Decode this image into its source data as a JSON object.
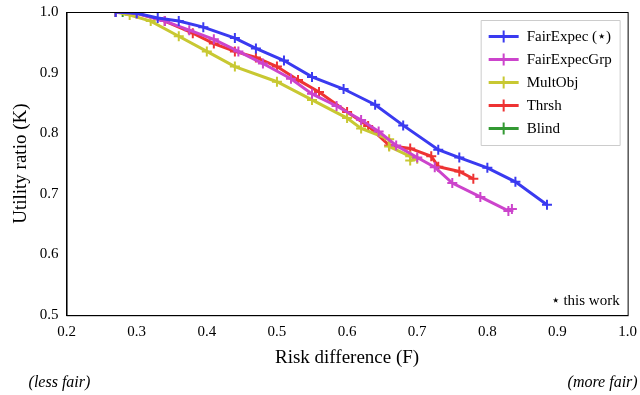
{
  "chart_data": {
    "type": "line",
    "x_label": "Risk difference (F)",
    "y_label": "Utility ratio (K)",
    "annotations": [
      "(less fair)",
      "(more fair)",
      "⋆ this work"
    ],
    "xlim": [
      0.2,
      1.0
    ],
    "xticks": [
      0.2,
      0.3,
      0.4,
      0.5,
      0.6,
      0.7,
      0.8,
      0.9,
      {
        "value": 1.0,
        "label": "1.0"
      }
    ],
    "ylim": [
      0.5,
      1.0
    ],
    "yticks": [
      0.5,
      0.6,
      0.7,
      0.8,
      0.9,
      {
        "value": 1.0,
        "label": "1.0"
      }
    ],
    "grid": false,
    "legend": "upper right",
    "marker": "plus",
    "line_style": "solid",
    "series": [
      {
        "name": "FairExpec (⋆)",
        "color": "#3a3af0",
        "x": [
          0.27,
          0.3,
          0.33,
          0.36,
          0.395,
          0.44,
          0.47,
          0.51,
          0.55,
          0.595,
          0.64,
          0.68,
          0.73,
          0.76,
          0.8,
          0.84,
          0.885
        ],
        "values": [
          1.0,
          0.998,
          0.99,
          0.985,
          0.975,
          0.957,
          0.94,
          0.92,
          0.893,
          0.873,
          0.847,
          0.813,
          0.773,
          0.76,
          0.743,
          0.72,
          0.682
        ]
      },
      {
        "name": "FairExpecGrp",
        "color": "#cc44cc",
        "x": [
          0.27,
          0.3,
          0.34,
          0.375,
          0.41,
          0.445,
          0.48,
          0.52,
          0.55,
          0.585,
          0.62,
          0.645,
          0.67,
          0.7,
          0.725,
          0.75,
          0.79,
          0.83,
          0.835
        ],
        "values": [
          1.0,
          0.998,
          0.985,
          0.97,
          0.955,
          0.935,
          0.915,
          0.89,
          0.865,
          0.845,
          0.822,
          0.803,
          0.78,
          0.76,
          0.744,
          0.718,
          0.695,
          0.672,
          0.675
        ]
      },
      {
        "name": "MultObj",
        "color": "#c8c832",
        "x": [
          0.27,
          0.29,
          0.32,
          0.36,
          0.4,
          0.44,
          0.5,
          0.55,
          0.6,
          0.62,
          0.66,
          0.66,
          0.69,
          0.7,
          0.69
        ],
        "values": [
          1.0,
          0.995,
          0.985,
          0.96,
          0.935,
          0.91,
          0.885,
          0.855,
          0.825,
          0.808,
          0.79,
          0.778,
          0.762,
          0.758,
          0.755
        ]
      },
      {
        "name": "Thrsh",
        "color": "#ee3333",
        "x": [
          0.27,
          0.3,
          0.34,
          0.38,
          0.41,
          0.44,
          0.47,
          0.5,
          0.53,
          0.56,
          0.6,
          0.63,
          0.66,
          0.69,
          0.72,
          0.73,
          0.76,
          0.78
        ],
        "values": [
          1.0,
          0.998,
          0.985,
          0.965,
          0.948,
          0.935,
          0.925,
          0.91,
          0.888,
          0.868,
          0.835,
          0.812,
          0.78,
          0.775,
          0.762,
          0.745,
          0.737,
          0.725
        ]
      },
      {
        "name": "Blind",
        "color": "#339933",
        "x": [
          0.27,
          0.28
        ],
        "values": [
          1.0,
          1.0
        ]
      }
    ]
  }
}
